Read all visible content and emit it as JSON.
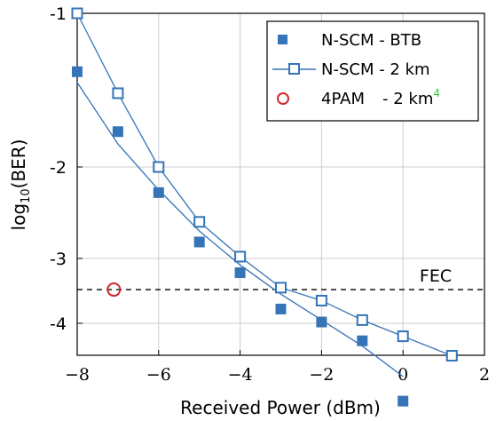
{
  "chart_data": {
    "type": "line",
    "xlabel": "Received Power (dBm)",
    "ylabel_base": "log",
    "ylabel_sub": "10",
    "ylabel_rest": "(BER)",
    "xlim": [
      -8,
      2
    ],
    "x_ticks": [
      {
        "value": -8,
        "label": "−8"
      },
      {
        "value": -6,
        "label": "−6"
      },
      {
        "value": -4,
        "label": "−4"
      },
      {
        "value": -2,
        "label": "−2"
      },
      {
        "value": 0,
        "label": "0"
      },
      {
        "value": 2,
        "label": "2"
      }
    ],
    "y_ticks": [
      {
        "value": -1,
        "label": "-1"
      },
      {
        "value": -2,
        "label": "-2"
      },
      {
        "value": -3,
        "label": "-3"
      },
      {
        "value": -4,
        "label": "-4"
      }
    ],
    "grid": true,
    "legend_position": "top-right",
    "series": [
      {
        "name": "N-SCM - BTB",
        "marker": "filled-square",
        "line": false,
        "color": "#3574b7",
        "x": [
          -8,
          -7,
          -6,
          -5,
          -4,
          -3,
          -2,
          -1,
          0
        ],
        "y": [
          -1.38,
          -1.77,
          -2.28,
          -2.82,
          -3.22,
          -3.78,
          -3.98,
          -4.27,
          -5.2
        ]
      },
      {
        "name": "N-SCM - 2 km",
        "marker": "open-square",
        "line": true,
        "color": "#3574b7",
        "x": [
          -8,
          -7,
          -6,
          -5,
          -4,
          -3,
          -2,
          -1,
          0,
          1.2
        ],
        "y": [
          -1.0,
          -1.52,
          -2.0,
          -2.6,
          -2.98,
          -3.45,
          -3.65,
          -3.95,
          -4.2,
          -4.5
        ]
      },
      {
        "name": "4PAM",
        "name_suffix": "- 2 km",
        "superscript": "4",
        "marker": "open-circle",
        "line": false,
        "color": "#d62728",
        "x": [
          -7.1
        ],
        "y": [
          -3.48
        ]
      }
    ],
    "fec_line": {
      "label": "FEC",
      "y": -3.48
    },
    "fit_line": {
      "x": [
        -8,
        -7,
        -6,
        -5,
        -4,
        -3,
        -2,
        -1,
        0
      ],
      "y": [
        -1.45,
        -1.85,
        -2.25,
        -2.7,
        -3.1,
        -3.55,
        -3.95,
        -4.35,
        -4.82
      ]
    },
    "colors": {
      "accent": "#3574b7",
      "superscript": "#2ecc40",
      "grid": "#cccccc"
    }
  }
}
